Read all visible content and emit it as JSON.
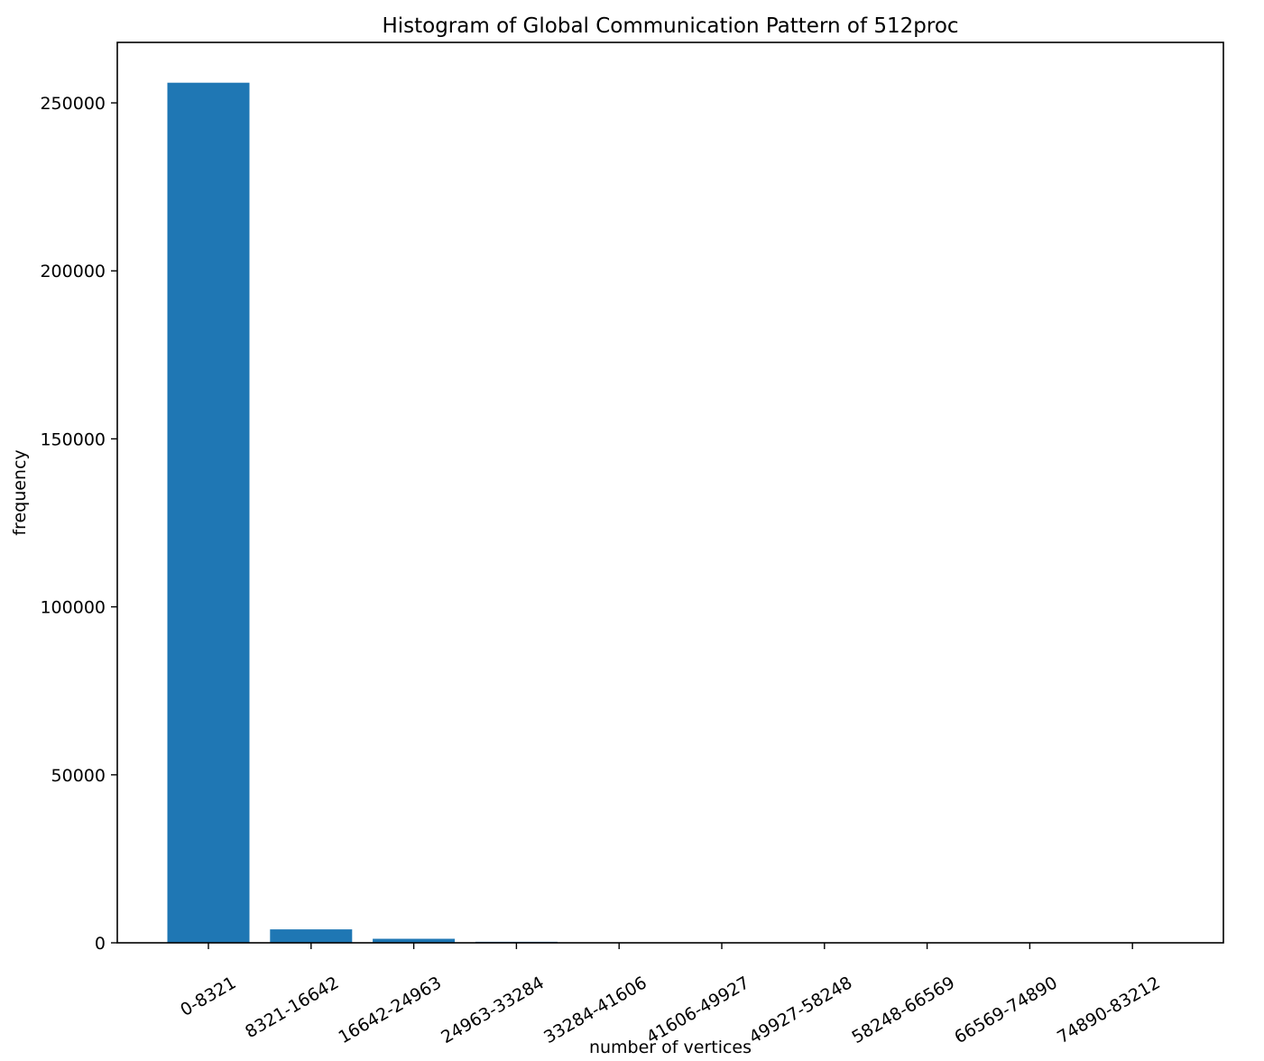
{
  "chart_data": {
    "type": "bar",
    "title": "Histogram of Global Communication Pattern of 512proc",
    "xlabel": "number of vertices",
    "ylabel": "frequency",
    "categories": [
      "0-8321",
      "8321-16642",
      "16642-24963",
      "24963-33284",
      "33284-41606",
      "41606-49927",
      "49927-58248",
      "58248-66569",
      "66569-74890",
      "74890-83212"
    ],
    "values": [
      256000,
      4000,
      1200,
      300,
      100,
      50,
      30,
      20,
      10,
      5
    ],
    "ylim": [
      0,
      268000
    ],
    "yticks": [
      0,
      50000,
      100000,
      150000,
      200000,
      250000
    ],
    "ytick_labels": [
      "0",
      "50000",
      "100000",
      "150000",
      "200000",
      "250000"
    ],
    "bar_color": "#1f77b4",
    "grid": false,
    "legend": "none"
  }
}
